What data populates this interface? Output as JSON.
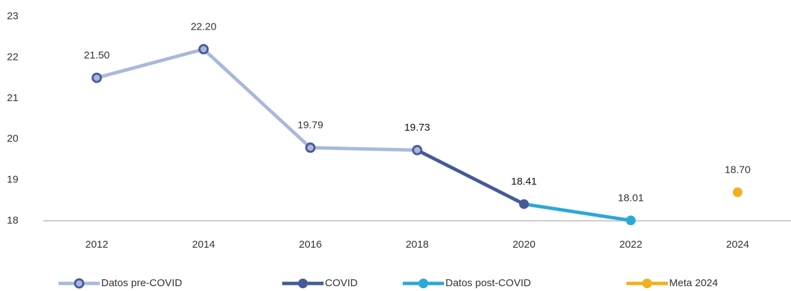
{
  "chart_data": {
    "type": "line",
    "categories": [
      "2012",
      "2014",
      "2016",
      "2018",
      "2020",
      "2022",
      "2024"
    ],
    "series": [
      {
        "name": "Datos pre-COVID",
        "color": "#a9b9db",
        "marker_edge": "#4a5a9a",
        "values": [
          21.5,
          22.2,
          19.79,
          19.73,
          null,
          null,
          null
        ],
        "value_labels": [
          "21.50",
          "22.20",
          "19.79",
          null,
          null,
          null,
          null
        ]
      },
      {
        "name": "COVID",
        "color": "#465a98",
        "values": [
          null,
          null,
          null,
          19.73,
          18.41,
          null,
          null
        ],
        "value_labels": [
          null,
          null,
          null,
          "19.73",
          "18.41",
          null,
          null
        ]
      },
      {
        "name": "Datos post-COVID",
        "color": "#2aa8d8",
        "values": [
          null,
          null,
          null,
          null,
          18.41,
          18.01,
          null
        ],
        "value_labels": [
          null,
          null,
          null,
          null,
          null,
          "18.01",
          null
        ]
      },
      {
        "name": "Meta 2024",
        "color": "#f2b01e",
        "values": [
          null,
          null,
          null,
          null,
          null,
          null,
          18.7
        ],
        "value_labels": [
          null,
          null,
          null,
          null,
          null,
          null,
          "18.70"
        ]
      }
    ],
    "ylim": [
      18,
      23
    ],
    "yticks": [
      18,
      19,
      20,
      21,
      22,
      23
    ]
  }
}
